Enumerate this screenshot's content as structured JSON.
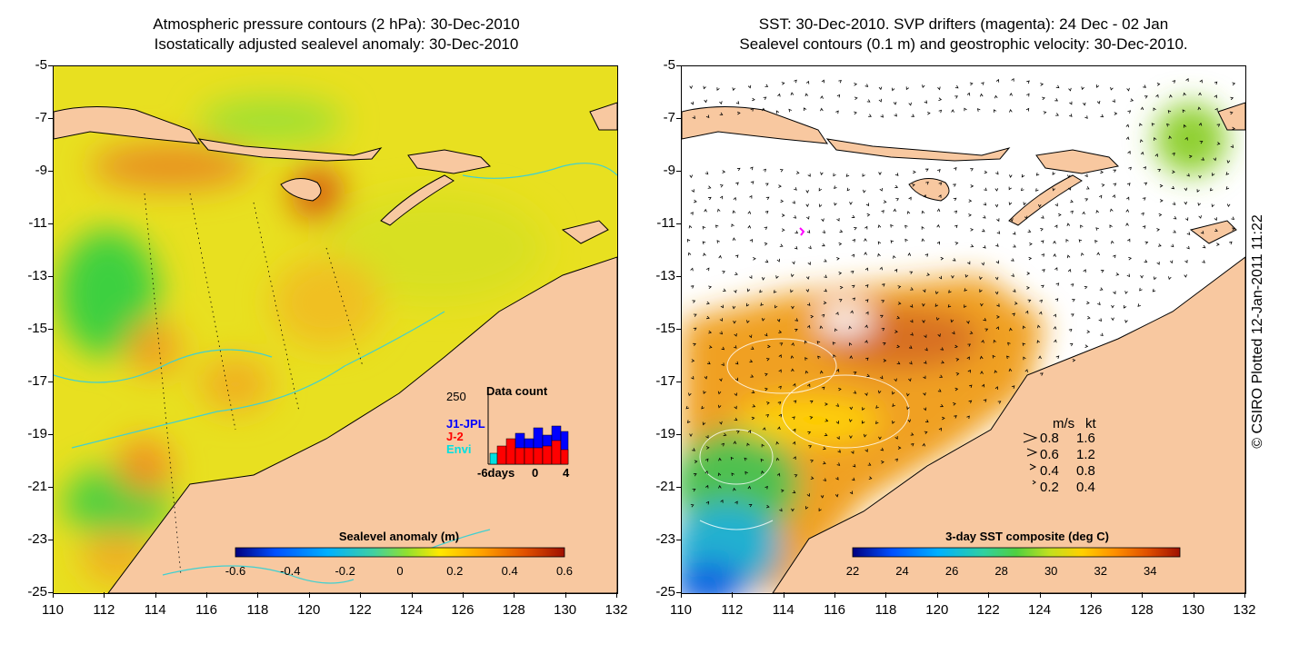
{
  "left_panel": {
    "title_line1": "Atmospheric pressure contours (2 hPa): 30-Dec-2010",
    "title_line2": "Isostatically adjusted sealevel anomaly: 30-Dec-2010",
    "colorbar": {
      "title": "Sealevel anomaly (m)",
      "ticks": [
        "-0.6",
        "-0.4",
        "-0.2",
        "0",
        "0.2",
        "0.4",
        "0.6"
      ],
      "range": [
        -0.6,
        0.6
      ],
      "palette": [
        "#000080",
        "#0050ff",
        "#00b0ff",
        "#40d0a0",
        "#70e040",
        "#ffe800",
        "#ffa000",
        "#e05000",
        "#a01000"
      ]
    },
    "inset": {
      "title": "Data count",
      "ymax_label": "250",
      "legend": [
        {
          "label": "J1-JPL",
          "color": "#0000ff"
        },
        {
          "label": "J-2",
          "color": "#ff0000"
        },
        {
          "label": "Envi",
          "color": "#00e0e0"
        }
      ],
      "x_labels": [
        "-6days",
        "0",
        "4"
      ]
    }
  },
  "right_panel": {
    "title_line1": "SST: 30-Dec-2010. SVP drifters (magenta): 24 Dec - 02 Jan",
    "title_line2": "Sealevel contours (0.1 m) and geostrophic velocity: 30-Dec-2010.",
    "colorbar": {
      "title": "3-day SST composite (deg C)",
      "ticks": [
        "22",
        "24",
        "26",
        "28",
        "30",
        "32",
        "34"
      ],
      "range": [
        22,
        35.2
      ],
      "palette": [
        "#000080",
        "#0050ff",
        "#00b0ff",
        "#30d0a0",
        "#50d040",
        "#a0e020",
        "#ffd000",
        "#ff9000",
        "#e05000",
        "#a01000"
      ]
    },
    "velocity_key": {
      "header_ms": "m/s",
      "header_kt": "kt",
      "rows": [
        {
          "ms": "0.8",
          "kt": "1.6"
        },
        {
          "ms": "0.6",
          "kt": "1.2"
        },
        {
          "ms": "0.4",
          "kt": "0.8"
        },
        {
          "ms": "0.2",
          "kt": "0.4"
        }
      ]
    }
  },
  "axes": {
    "x_ticks": [
      "110",
      "112",
      "114",
      "116",
      "118",
      "120",
      "122",
      "124",
      "126",
      "128",
      "130",
      "132"
    ],
    "y_ticks": [
      "-5",
      "-7",
      "-9",
      "-11",
      "-13",
      "-15",
      "-17",
      "-19",
      "-21",
      "-23",
      "-25"
    ],
    "lon_range": [
      110,
      132
    ],
    "lat_range": [
      -25,
      -5
    ]
  },
  "credit": "© CSIRO Plotted 12-Jan-2011 11:22",
  "colors": {
    "land": "#f8c8a0",
    "coast": "#000000",
    "isobath": "#40d0d0",
    "ssh_background": "#e8e020",
    "velocity_arrow": "#000000",
    "drifter": "#ff00ff"
  }
}
